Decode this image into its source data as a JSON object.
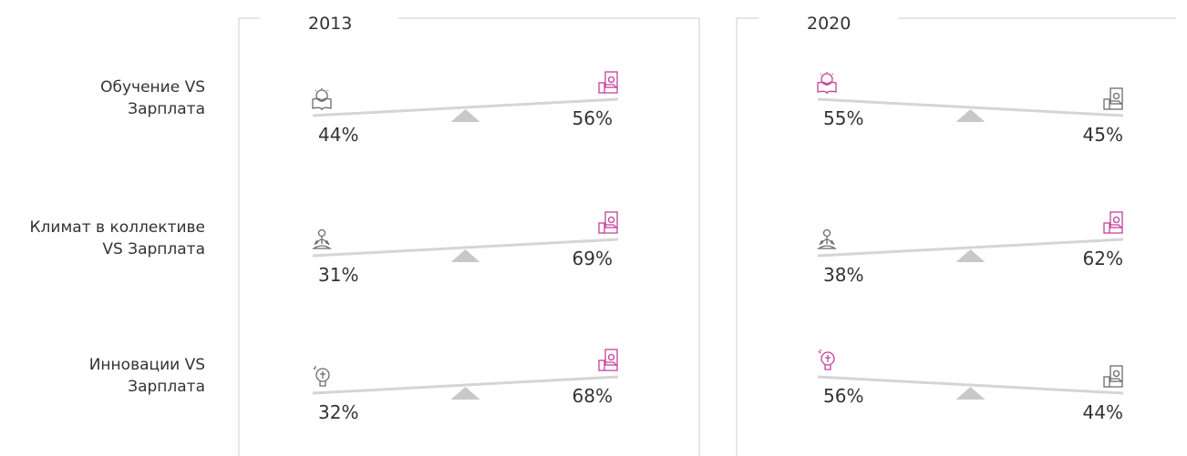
{
  "row_labels": [
    [
      "Обучение VS",
      "Зарплата"
    ],
    [
      "Климат в коллективе",
      "VS Зарплата"
    ],
    [
      "Инновации VS",
      "Зарплата"
    ]
  ],
  "panels": [
    {
      "title": "2013",
      "rows": [
        {
          "left": "44%",
          "right": "56%"
        },
        {
          "left": "31%",
          "right": "69%"
        },
        {
          "left": "32%",
          "right": "68%"
        }
      ]
    },
    {
      "title": "2020",
      "rows": [
        {
          "left": "55%",
          "right": "45%"
        },
        {
          "left": "38%",
          "right": "62%"
        },
        {
          "left": "56%",
          "right": "44%"
        }
      ]
    }
  ]
}
